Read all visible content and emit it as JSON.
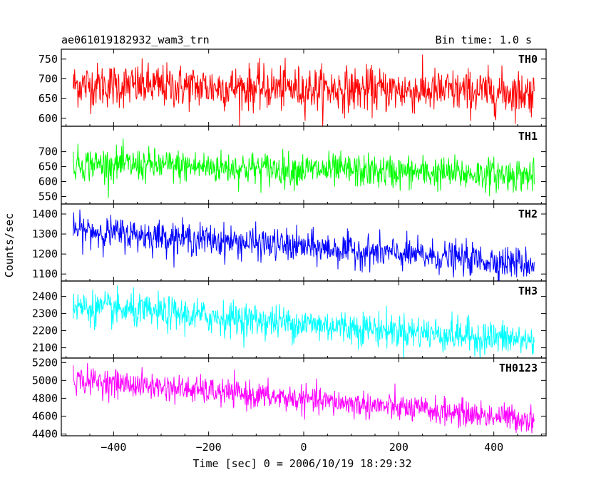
{
  "header": {
    "left_title": "ae061019182932_wam3_trn",
    "right_title": "Bin time: 1.0 s"
  },
  "axes": {
    "ylabel": "Counts/sec",
    "xlabel": "Time [sec] 0 = 2006/10/19 18:29:32",
    "xlim": [
      -510,
      510
    ],
    "xticks": [
      -400,
      -200,
      0,
      200,
      400
    ]
  },
  "colors": {
    "TH0": "#ff0000",
    "TH1": "#00ff00",
    "TH2": "#0000ff",
    "TH3": "#00ffff",
    "TH0123": "#ff00ff",
    "frame": "#000000"
  },
  "chart_data": {
    "type": "line",
    "x_range": [
      -485,
      485
    ],
    "bin_time_s": 1.0,
    "panels": [
      {
        "name": "TH0",
        "ylim": [
          580,
          775
        ],
        "yticks": [
          600,
          650,
          700,
          750
        ],
        "trend": [
          [
            -485,
            685
          ],
          [
            485,
            665
          ]
        ],
        "noise_sd": 28
      },
      {
        "name": "TH1",
        "ylim": [
          525,
          785
        ],
        "yticks": [
          550,
          600,
          650,
          700
        ],
        "trend": [
          [
            -485,
            660
          ],
          [
            485,
            620
          ]
        ],
        "noise_sd": 28
      },
      {
        "name": "TH2",
        "ylim": [
          1065,
          1450
        ],
        "yticks": [
          1100,
          1200,
          1300,
          1400
        ],
        "trend": [
          [
            -485,
            1320
          ],
          [
            485,
            1150
          ]
        ],
        "noise_sd": 40
      },
      {
        "name": "TH3",
        "ylim": [
          2040,
          2490
        ],
        "yticks": [
          2100,
          2200,
          2300,
          2400
        ],
        "trend": [
          [
            -485,
            2340
          ],
          [
            485,
            2140
          ]
        ],
        "noise_sd": 50
      },
      {
        "name": "TH0123",
        "ylim": [
          4380,
          5250
        ],
        "yticks": [
          4400,
          4600,
          4800,
          5000,
          5200
        ],
        "trend": [
          [
            -485,
            5010
          ],
          [
            485,
            4560
          ]
        ],
        "noise_sd": 75
      }
    ]
  }
}
